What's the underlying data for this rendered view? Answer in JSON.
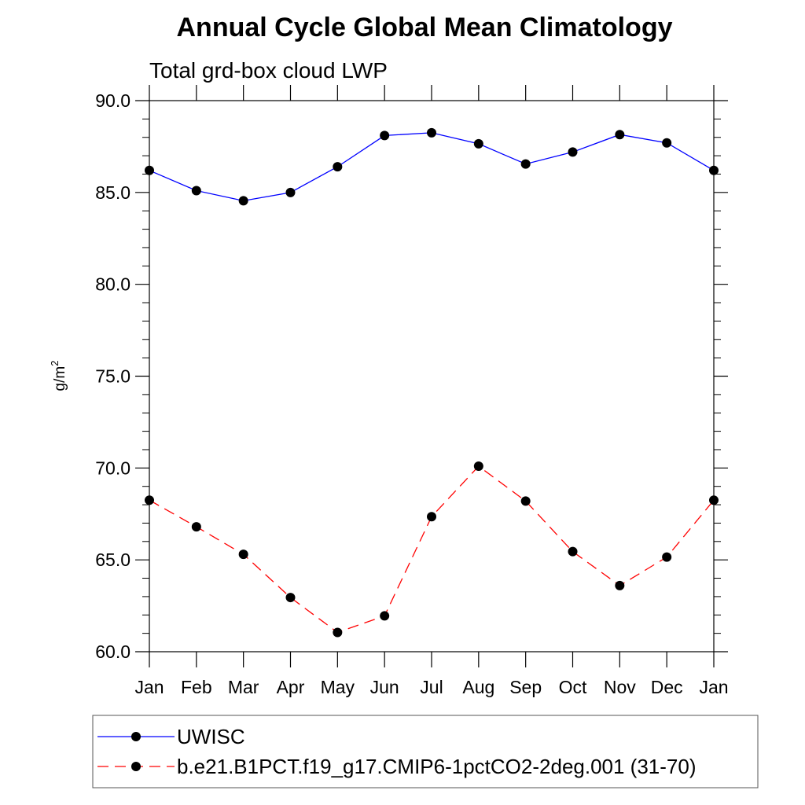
{
  "chart_data": {
    "type": "line",
    "title": "Annual Cycle Global Mean Climatology",
    "subtitle": "Total grd-box cloud LWP",
    "ylabel": "g/m",
    "ylabel_superscript": "2",
    "xlabel": "",
    "categories": [
      "Jan",
      "Feb",
      "Mar",
      "Apr",
      "May",
      "Jun",
      "Jul",
      "Aug",
      "Sep",
      "Oct",
      "Nov",
      "Dec",
      "Jan"
    ],
    "ylim": [
      60.0,
      90.0
    ],
    "y_ticks": [
      "60.0",
      "65.0",
      "70.0",
      "75.0",
      "80.0",
      "85.0",
      "90.0"
    ],
    "y_minor_step": 1.0,
    "grid": false,
    "legend_position": "bottom",
    "series": [
      {
        "name": "UWISC",
        "color": "#0000ff",
        "dashed": false,
        "values": [
          86.2,
          85.1,
          84.55,
          85.0,
          86.4,
          88.1,
          88.25,
          87.65,
          86.55,
          87.2,
          88.15,
          87.7,
          86.2
        ]
      },
      {
        "name": "b.e21.B1PCT.f19_g17.CMIP6-1pctCO2-2deg.001 (31-70)",
        "color": "#ff0000",
        "dashed": true,
        "values": [
          68.25,
          66.8,
          65.3,
          62.95,
          61.05,
          61.95,
          67.35,
          70.1,
          68.2,
          65.45,
          63.6,
          65.15,
          68.25
        ]
      }
    ]
  }
}
